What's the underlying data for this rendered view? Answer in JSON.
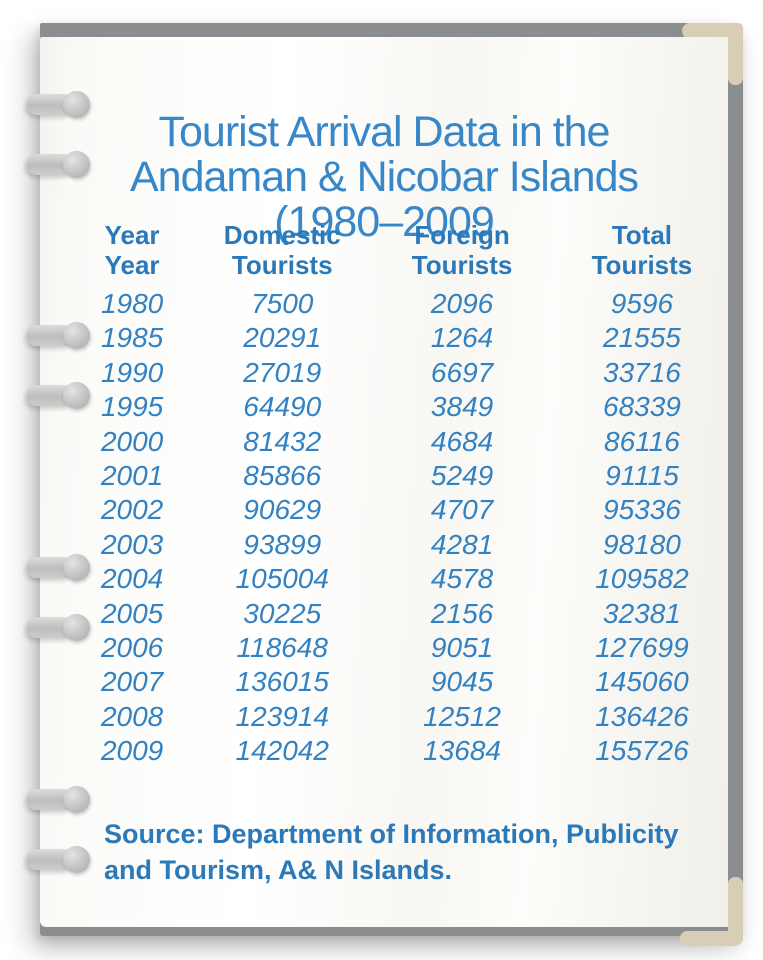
{
  "colors": {
    "title_blue": "#3787c9",
    "header_blue": "#2b79b8",
    "data_blue": "#3282c3",
    "backing_gray": "#8b8e90",
    "corner_tan": "#d7ceb5",
    "ring_gray": "#c2c2c2",
    "page_white": "#fdfdfb"
  },
  "page": {
    "title": {
      "lines": [
        "Tourist Arrival Data in the",
        "Andaman & Nicobar Islands",
        "(1980–2009"
      ]
    },
    "table": {
      "headers": [
        {
          "line1": "Year",
          "line2": "Year"
        },
        {
          "line1": "Domestic",
          "line2": "Tourists"
        },
        {
          "line1": "Foreign",
          "line2": "Tourists"
        },
        {
          "line1": "Total",
          "line2": "Tourists"
        }
      ]
    },
    "source": {
      "lines": [
        "Source: Department of Information, Publicity",
        "and Tourism, A& N Islands."
      ]
    }
  },
  "chart_data": {
    "type": "table",
    "title": "Tourist Arrival Data in the Andaman & Nicobar Islands (1980–2009",
    "columns": [
      "Year",
      "Domestic Tourists",
      "Foreign Tourists",
      "Total Tourists"
    ],
    "rows": [
      [
        1980,
        7500,
        2096,
        9596
      ],
      [
        1985,
        20291,
        1264,
        21555
      ],
      [
        1990,
        27019,
        6697,
        33716
      ],
      [
        1995,
        64490,
        3849,
        68339
      ],
      [
        2000,
        81432,
        4684,
        86116
      ],
      [
        2001,
        85866,
        5249,
        91115
      ],
      [
        2002,
        90629,
        4707,
        95336
      ],
      [
        2003,
        93899,
        4281,
        98180
      ],
      [
        2004,
        105004,
        4578,
        109582
      ],
      [
        2005,
        30225,
        2156,
        32381
      ],
      [
        2006,
        118648,
        9051,
        127699
      ],
      [
        2007,
        136015,
        9045,
        145060
      ],
      [
        2008,
        123914,
        12512,
        136426
      ],
      [
        2009,
        142042,
        13684,
        155726
      ]
    ],
    "source": "Department of Information, Publicity and Tourism, A& N Islands."
  }
}
